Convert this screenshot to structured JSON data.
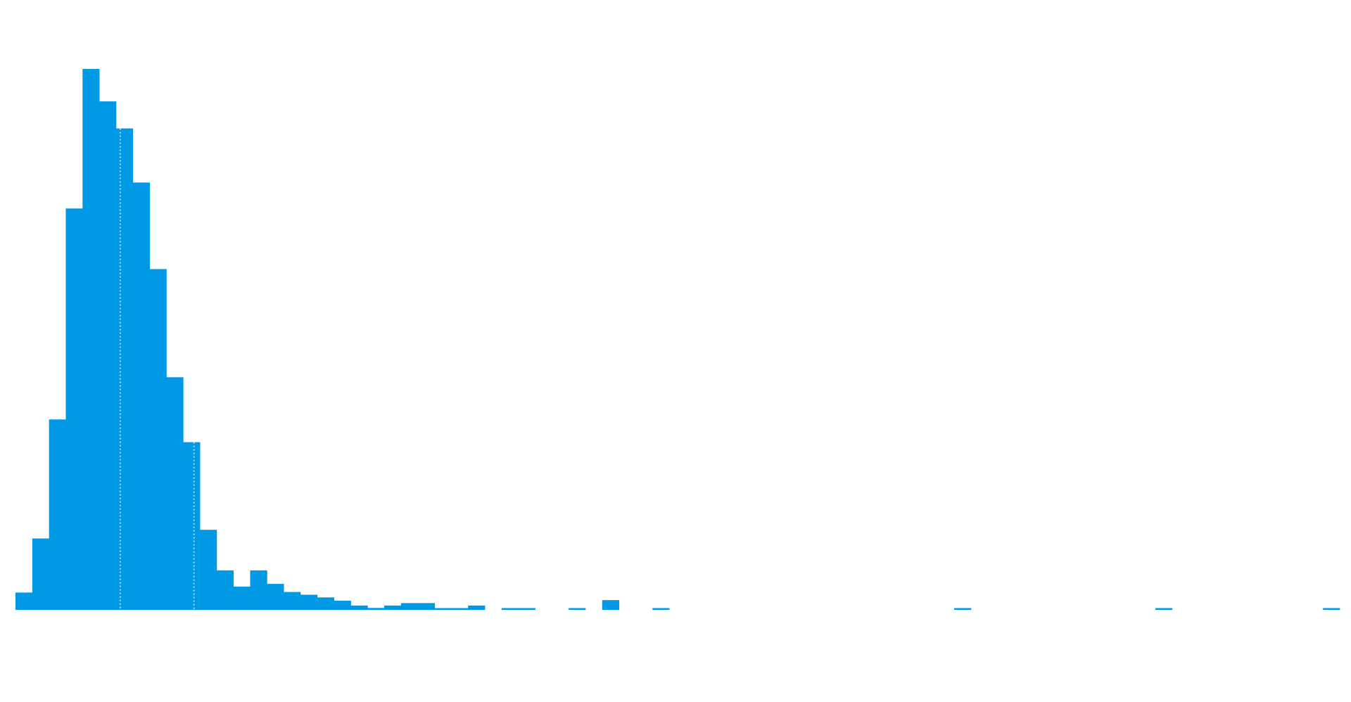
{
  "chart_data": {
    "type": "bar",
    "subtype": "histogram",
    "bar_color": "#0099e6",
    "marker_line_color": "#a8d4f0",
    "x_axis_visible": false,
    "y_axis_visible": false,
    "grid": false,
    "legend": "none",
    "bin_count": 79,
    "ylim": [
      0,
      100
    ],
    "values": [
      3.2,
      13.2,
      35.2,
      74.2,
      100,
      94,
      89,
      79,
      63,
      43,
      31,
      14.8,
      7.3,
      4.3,
      7.3,
      4.8,
      3.3,
      2.8,
      2.3,
      1.7,
      0.8,
      0.35,
      0.8,
      1.25,
      1.25,
      0.25,
      0.25,
      0.8,
      0,
      0.3,
      0.3,
      0,
      0,
      0.3,
      0,
      1.8,
      0,
      0,
      0.3,
      0,
      0,
      0,
      0,
      0,
      0,
      0,
      0,
      0,
      0,
      0,
      0,
      0,
      0,
      0,
      0,
      0,
      0.3,
      0,
      0,
      0,
      0,
      0,
      0,
      0,
      0,
      0,
      0,
      0,
      0.3,
      0,
      0,
      0,
      0,
      0,
      0,
      0,
      0,
      0,
      0.3
    ],
    "markers": [
      {
        "bin_position": 6.25
      },
      {
        "bin_position": 10.65
      }
    ]
  }
}
